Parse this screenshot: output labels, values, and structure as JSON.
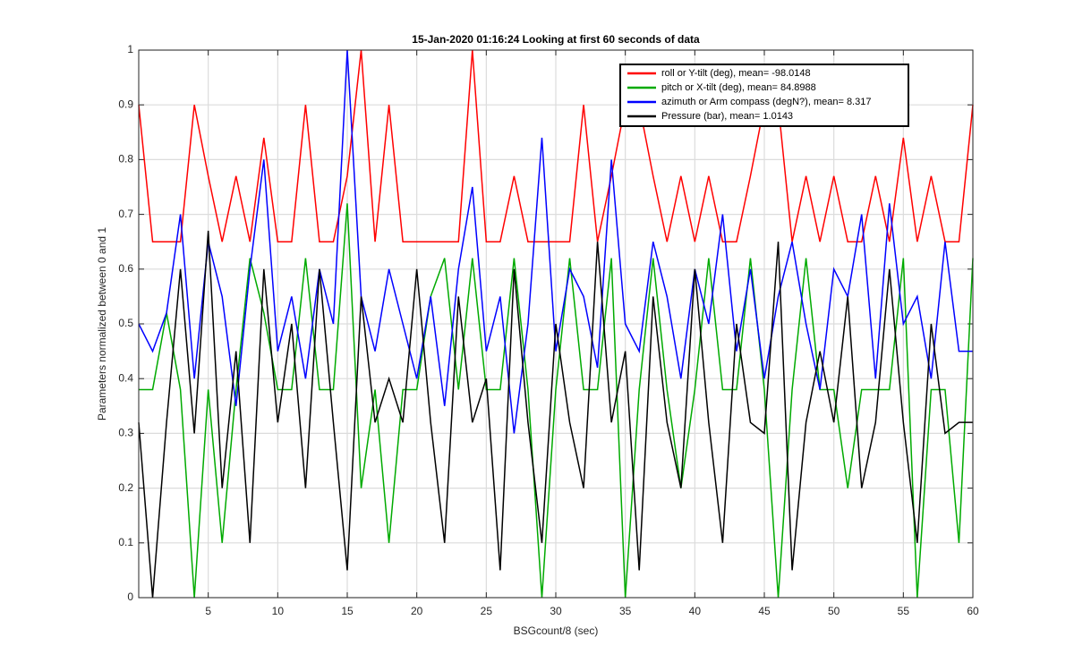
{
  "chart_data": {
    "type": "line",
    "title": "15-Jan-2020 01:16:24 Looking at first 60 seconds of data",
    "xlabel": "BSGcount/8 (sec)",
    "ylabel": "Parameters normalized between 0 and 1",
    "x": [
      0,
      1,
      2,
      3,
      4,
      5,
      6,
      7,
      8,
      9,
      10,
      11,
      12,
      13,
      14,
      15,
      16,
      17,
      18,
      19,
      20,
      21,
      22,
      23,
      24,
      25,
      26,
      27,
      28,
      29,
      30,
      31,
      32,
      33,
      34,
      35,
      36,
      37,
      38,
      39,
      40,
      41,
      42,
      43,
      44,
      45,
      46,
      47,
      48,
      49,
      50,
      51,
      52,
      53,
      54,
      55,
      56,
      57,
      58,
      59,
      60
    ],
    "series": [
      {
        "name": "roll or Y-tilt (deg), mean= -98.0148",
        "color": "#ff0000",
        "values": [
          0.9,
          0.65,
          0.65,
          0.65,
          0.9,
          0.77,
          0.65,
          0.77,
          0.65,
          0.84,
          0.65,
          0.65,
          0.9,
          0.65,
          0.65,
          0.77,
          1,
          0.65,
          0.9,
          0.65,
          0.65,
          0.65,
          0.65,
          0.65,
          1,
          0.65,
          0.65,
          0.77,
          0.65,
          0.65,
          0.65,
          0.65,
          0.9,
          0.65,
          0.77,
          0.9,
          0.9,
          0.77,
          0.65,
          0.77,
          0.65,
          0.77,
          0.65,
          0.65,
          0.77,
          0.9,
          0.9,
          0.65,
          0.77,
          0.65,
          0.77,
          0.65,
          0.65,
          0.77,
          0.65,
          0.84,
          0.65,
          0.77,
          0.65,
          0.65,
          0.9
        ]
      },
      {
        "name": "pitch or X-tilt (deg), mean= 84.8988",
        "color": "#00aa00",
        "values": [
          0.38,
          0.38,
          0.52,
          0.38,
          0,
          0.38,
          0.1,
          0.38,
          0.62,
          0.52,
          0.38,
          0.38,
          0.62,
          0.38,
          0.38,
          0.72,
          0.2,
          0.38,
          0.1,
          0.38,
          0.38,
          0.55,
          0.62,
          0.38,
          0.62,
          0.38,
          0.38,
          0.62,
          0.38,
          0,
          0.38,
          0.62,
          0.38,
          0.38,
          0.62,
          0,
          0.38,
          0.62,
          0.38,
          0.2,
          0.38,
          0.62,
          0.38,
          0.38,
          0.62,
          0.38,
          0,
          0.38,
          0.62,
          0.38,
          0.38,
          0.2,
          0.38,
          0.38,
          0.38,
          0.62,
          0,
          0.38,
          0.38,
          0.1,
          0.62
        ]
      },
      {
        "name": "azimuth or Arm compass (degN?), mean= 8.317",
        "color": "#0000ff",
        "values": [
          0.5,
          0.45,
          0.52,
          0.7,
          0.4,
          0.65,
          0.55,
          0.35,
          0.6,
          0.8,
          0.45,
          0.55,
          0.4,
          0.6,
          0.5,
          1,
          0.55,
          0.45,
          0.6,
          0.5,
          0.4,
          0.55,
          0.35,
          0.6,
          0.75,
          0.45,
          0.55,
          0.3,
          0.5,
          0.84,
          0.45,
          0.6,
          0.55,
          0.42,
          0.8,
          0.5,
          0.45,
          0.65,
          0.55,
          0.4,
          0.6,
          0.5,
          0.7,
          0.45,
          0.6,
          0.4,
          0.55,
          0.65,
          0.5,
          0.38,
          0.6,
          0.55,
          0.7,
          0.4,
          0.72,
          0.5,
          0.55,
          0.4,
          0.65,
          0.45,
          0.45
        ]
      },
      {
        "name": "Pressure (bar), mean= 1.0143",
        "color": "#000000",
        "values": [
          0.32,
          0,
          0.32,
          0.6,
          0.3,
          0.67,
          0.2,
          0.45,
          0.1,
          0.6,
          0.32,
          0.5,
          0.2,
          0.6,
          0.32,
          0.05,
          0.55,
          0.32,
          0.4,
          0.32,
          0.6,
          0.32,
          0.1,
          0.55,
          0.32,
          0.4,
          0.05,
          0.6,
          0.32,
          0.1,
          0.5,
          0.32,
          0.2,
          0.65,
          0.32,
          0.45,
          0.05,
          0.55,
          0.32,
          0.2,
          0.6,
          0.32,
          0.1,
          0.5,
          0.32,
          0.3,
          0.65,
          0.05,
          0.32,
          0.45,
          0.32,
          0.55,
          0.2,
          0.32,
          0.6,
          0.32,
          0.1,
          0.5,
          0.3,
          0.32,
          0.32
        ]
      }
    ],
    "xlim": [
      0,
      60
    ],
    "xticks": [
      5,
      10,
      15,
      20,
      25,
      30,
      35,
      40,
      45,
      50,
      55,
      60
    ],
    "ylim": [
      0,
      1
    ],
    "yticks": [
      0,
      0.1,
      0.2,
      0.3,
      0.4,
      0.5,
      0.6,
      0.7,
      0.8,
      0.9,
      1
    ],
    "grid": true,
    "legend": "top-right"
  }
}
